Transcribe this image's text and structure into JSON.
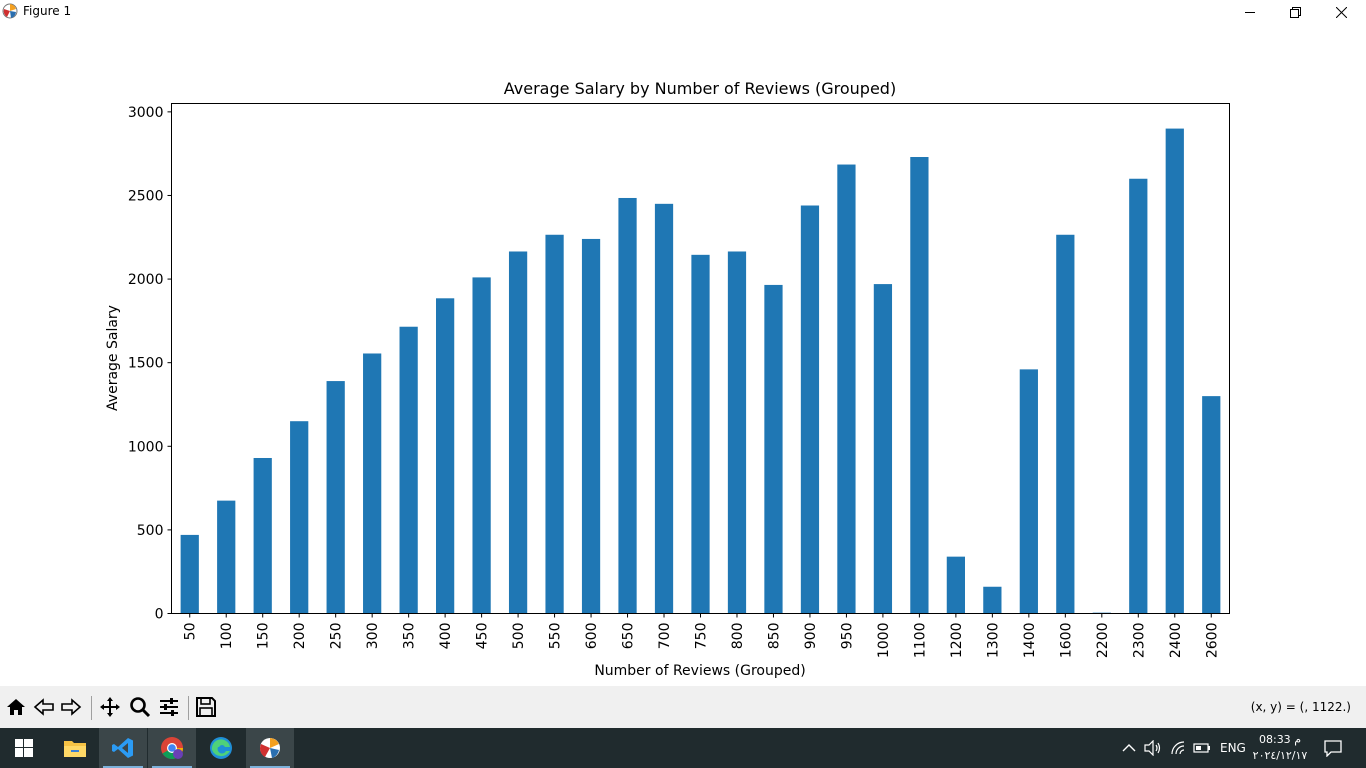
{
  "window": {
    "title": "Figure 1"
  },
  "toolbar": {
    "coords_text": "(x, y) = (, 1122.)"
  },
  "taskbar": {
    "lang": "ENG",
    "time": "08:33 م",
    "date": "٢٠٢٤/١٢/١٧"
  },
  "chart_data": {
    "type": "bar",
    "title": "Average Salary by Number of Reviews (Grouped)",
    "xlabel": "Number of Reviews (Grouped)",
    "ylabel": "Average Salary",
    "ylim": [
      0,
      3050
    ],
    "yticks": [
      0,
      500,
      1000,
      1500,
      2000,
      2500,
      3000
    ],
    "grid": false,
    "bar_color": "#1f77b4",
    "categories": [
      "50",
      "100",
      "150",
      "200",
      "250",
      "300",
      "350",
      "400",
      "450",
      "500",
      "550",
      "600",
      "650",
      "700",
      "750",
      "800",
      "850",
      "900",
      "950",
      "1000",
      "1100",
      "1200",
      "1300",
      "1400",
      "1600",
      "2200",
      "2300",
      "2400",
      "2600"
    ],
    "values": [
      470,
      675,
      930,
      1150,
      1390,
      1555,
      1715,
      1885,
      2010,
      2165,
      2265,
      2240,
      2485,
      2450,
      2145,
      2165,
      1965,
      2440,
      2685,
      1970,
      2730,
      340,
      160,
      1460,
      2265,
      5,
      2600,
      2900,
      1300
    ]
  }
}
